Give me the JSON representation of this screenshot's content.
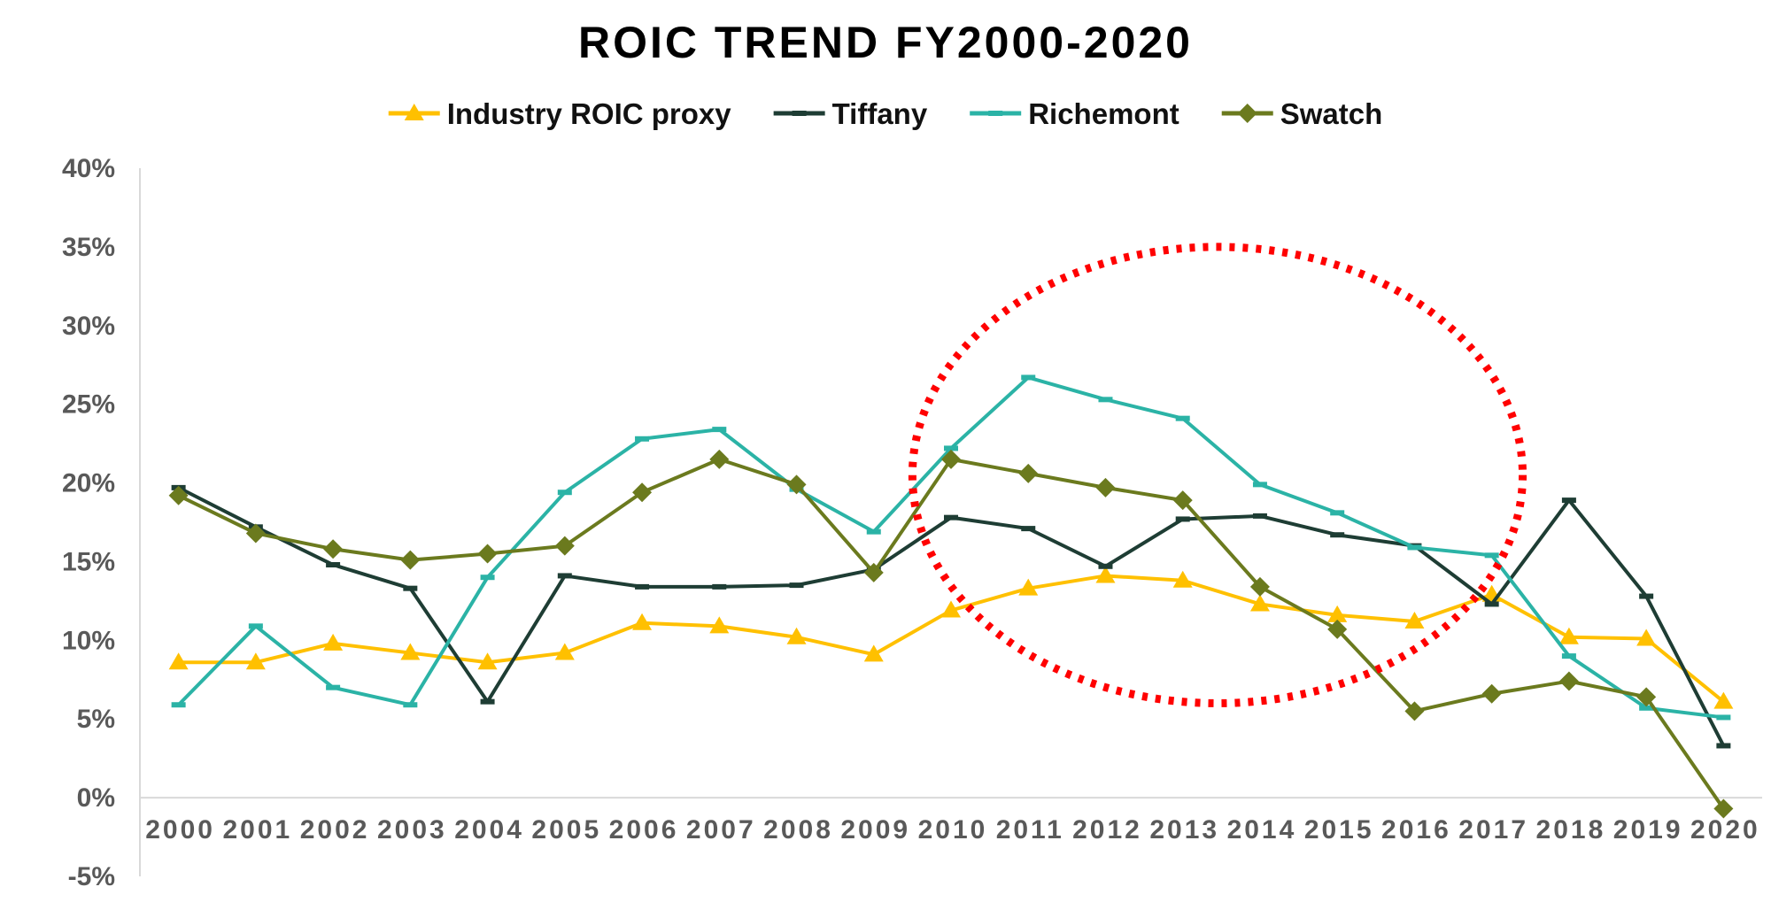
{
  "chart_data": {
    "type": "line",
    "title": "ROIC TREND FY2000-2020",
    "xlabel": "",
    "ylabel": "",
    "ylim": [
      -5,
      40
    ],
    "y_ticks": [
      "40%",
      "35%",
      "30%",
      "25%",
      "20%",
      "15%",
      "10%",
      "5%",
      "0%",
      "-5%"
    ],
    "y_tick_values": [
      40,
      35,
      30,
      25,
      20,
      15,
      10,
      5,
      0,
      -5
    ],
    "categories": [
      "2000",
      "2001",
      "2002",
      "2003",
      "2004",
      "2005",
      "2006",
      "2007",
      "2008",
      "2009",
      "2010",
      "2011",
      "2012",
      "2013",
      "2014",
      "2015",
      "2016",
      "2017",
      "2018",
      "2019",
      "2020"
    ],
    "grid": false,
    "legend_position": "top",
    "series": [
      {
        "name": "Industry ROIC proxy",
        "color": "#FFC000",
        "marker": "triangle",
        "values": [
          8.6,
          8.6,
          9.8,
          9.2,
          8.6,
          9.2,
          11.1,
          10.9,
          10.2,
          9.1,
          11.9,
          13.3,
          14.1,
          13.8,
          12.3,
          11.6,
          11.2,
          12.9,
          10.2,
          10.1,
          6.1
        ]
      },
      {
        "name": "Tiffany",
        "color": "#1E3D34",
        "marker": "dash",
        "values": [
          19.7,
          17.2,
          14.8,
          13.3,
          6.1,
          14.1,
          13.4,
          13.4,
          13.5,
          14.5,
          17.8,
          17.1,
          14.7,
          17.7,
          17.9,
          16.7,
          16.0,
          12.3,
          18.9,
          12.8,
          3.3
        ]
      },
      {
        "name": "Richemont",
        "color": "#2BB3A6",
        "marker": "dash",
        "values": [
          5.9,
          10.9,
          7.0,
          5.9,
          14.0,
          19.4,
          22.8,
          23.4,
          19.6,
          16.9,
          22.2,
          26.7,
          25.3,
          24.1,
          19.9,
          18.1,
          15.9,
          15.4,
          9.0,
          5.7,
          5.1
        ]
      },
      {
        "name": "Swatch",
        "color": "#6B7A1E",
        "marker": "diamond",
        "values": [
          19.2,
          16.8,
          15.8,
          15.1,
          15.5,
          16.0,
          19.4,
          21.5,
          19.9,
          14.3,
          21.5,
          20.6,
          19.7,
          18.9,
          13.4,
          10.7,
          5.5,
          6.6,
          7.4,
          6.4,
          -0.7
        ]
      }
    ],
    "annotation": {
      "type": "dotted-ellipse",
      "color": "#FF0000",
      "x_range": [
        "2010",
        "2017"
      ],
      "y_range": [
        6,
        35
      ]
    }
  }
}
